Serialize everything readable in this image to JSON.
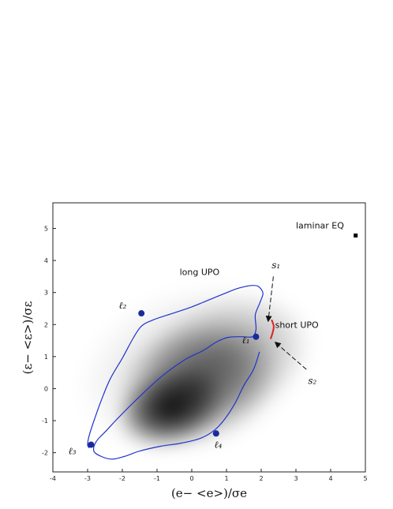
{
  "chart_data": {
    "type": "scatter",
    "title": "",
    "xlabel": "(e− <e>)/σe",
    "ylabel": "(ε− <ε>)/σε",
    "xlim": [
      -4,
      5
    ],
    "ylim": [
      -2.6,
      5.8
    ],
    "xticks": [
      -4,
      -3,
      -2,
      -1,
      0,
      1,
      2,
      3,
      4,
      5
    ],
    "yticks": [
      -2,
      -1,
      0,
      1,
      2,
      3,
      4,
      5
    ],
    "grid": false,
    "density": {
      "description_color": "#000000",
      "blobs": [
        {
          "cx": -0.6,
          "cy": -0.6,
          "rx": 1.6,
          "ry": 1.2,
          "opacity": 0.95
        },
        {
          "cx": 0.2,
          "cy": 0.2,
          "rx": 2.4,
          "ry": 1.9,
          "opacity": 0.55
        },
        {
          "cx": 1.0,
          "cy": 1.0,
          "rx": 2.6,
          "ry": 1.9,
          "opacity": 0.3
        },
        {
          "cx": 0.0,
          "cy": 0.6,
          "rx": 3.4,
          "ry": 2.6,
          "opacity": 0.15
        }
      ]
    },
    "long_upo": {
      "label": "long UPO",
      "label_pos": [
        -0.35,
        3.55
      ],
      "color": "#2233cc",
      "x": [
        1.95,
        1.78,
        1.5,
        1.25,
        0.95,
        0.65,
        0.25,
        -0.3,
        -0.9,
        -1.5,
        -1.95,
        -2.3,
        -2.6,
        -2.82,
        -2.75,
        -2.45,
        -2.15,
        -1.6,
        -0.9,
        -0.2,
        0.35,
        0.7,
        1.05,
        1.45,
        1.75,
        1.85,
        1.83,
        1.95,
        2.05,
        2.0,
        1.9,
        1.75,
        1.6,
        1.3,
        0.9,
        0.45,
        0.0,
        -0.55,
        -1.1,
        -1.45,
        -1.7,
        -2.0,
        -2.35,
        -2.6,
        -2.8,
        -2.95,
        -3.0,
        -2.95
      ],
      "y": [
        1.15,
        0.6,
        0.1,
        -0.45,
        -0.95,
        -1.3,
        -1.55,
        -1.7,
        -1.8,
        -1.95,
        -2.12,
        -2.2,
        -2.12,
        -1.95,
        -1.65,
        -1.3,
        -0.95,
        -0.35,
        0.35,
        0.9,
        1.2,
        1.45,
        1.6,
        1.62,
        1.62,
        1.85,
        2.3,
        2.65,
        2.95,
        3.1,
        3.2,
        3.22,
        3.2,
        3.12,
        2.95,
        2.75,
        2.55,
        2.35,
        2.15,
        1.95,
        1.55,
        0.95,
        0.3,
        -0.35,
        -0.95,
        -1.45,
        -1.75,
        -1.85
      ]
    },
    "short_upo": {
      "label": "short UPO",
      "label_pos": [
        2.4,
        1.9
      ],
      "color": "#dd2222",
      "x": [
        2.27,
        2.33,
        2.36,
        2.3
      ],
      "y": [
        1.55,
        1.75,
        1.95,
        2.15
      ]
    },
    "points": [
      {
        "label": "ℓ₁",
        "x": 1.85,
        "y": 1.62,
        "label_pos": [
          1.45,
          1.42
        ]
      },
      {
        "label": "ℓ₂",
        "x": -1.45,
        "y": 2.35,
        "label_pos": [
          -2.1,
          2.5
        ]
      },
      {
        "label": "ℓ₃",
        "x": -2.9,
        "y": -1.75,
        "label_pos": [
          -3.55,
          -2.05
        ]
      },
      {
        "label": "ℓ₄",
        "x": 0.7,
        "y": -1.4,
        "label_pos": [
          0.65,
          -1.85
        ]
      }
    ],
    "laminar_eq": {
      "label": "laminar EQ",
      "x": 4.72,
      "y": 4.78,
      "label_pos": [
        3.0,
        5.0
      ]
    },
    "arrows": [
      {
        "label": "s₁",
        "label_pos": [
          2.3,
          3.75
        ],
        "from": [
          2.35,
          3.5
        ],
        "to": [
          2.2,
          2.1
        ],
        "dashed": true
      },
      {
        "label": "s₂",
        "label_pos": [
          3.35,
          0.15
        ],
        "from": [
          3.3,
          0.6
        ],
        "to": [
          2.4,
          1.45
        ],
        "dashed": true
      }
    ]
  }
}
